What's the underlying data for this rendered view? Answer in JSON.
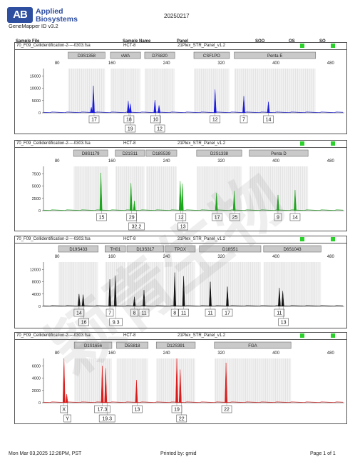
{
  "header": {
    "logo_mark": "AB",
    "logo_line1": "Applied",
    "logo_line2": "Biosystems",
    "app_version": "GeneMapper ID v3.2",
    "date": "20250217"
  },
  "table_header": {
    "sample_file": "Sample File",
    "sample_name": "Sample Name",
    "panel": "Panel",
    "sqo": "SQO",
    "os": "OS",
    "sq": "SQ"
  },
  "footer": {
    "timestamp": "Mon Mar 03,2025 12:26PM, PST",
    "printed_by": "Printed by: gmid",
    "page": "Page 1 of 1"
  },
  "watermark": "颖青生物",
  "chart_data": [
    {
      "type": "line",
      "color": "#1a1adf",
      "sample_file": "70_F09_Cellidentification-2----0303.fsa",
      "sample_name": "HCT-8",
      "panel": "21Plex_STR_Panel_v1.2",
      "x_ticks": [
        80,
        160,
        240,
        320,
        400,
        480
      ],
      "y_ticks": [
        0,
        5000,
        10000,
        15000
      ],
      "markers": [
        {
          "name": "D3S1358",
          "start": 96,
          "end": 150
        },
        {
          "name": "vWA",
          "start": 158,
          "end": 202
        },
        {
          "name": "D7S820",
          "start": 208,
          "end": 252
        },
        {
          "name": "CSF1PO",
          "start": 280,
          "end": 332
        },
        {
          "name": "Penta E",
          "start": 339,
          "end": 458
        }
      ],
      "peaks": [
        {
          "x": 133,
          "h": 11000
        },
        {
          "x": 130,
          "h": 2300
        },
        {
          "x": 184,
          "h": 4800
        },
        {
          "x": 187,
          "h": 3700
        },
        {
          "x": 223,
          "h": 5200
        },
        {
          "x": 229,
          "h": 3000
        },
        {
          "x": 311,
          "h": 9500
        },
        {
          "x": 353,
          "h": 6800
        },
        {
          "x": 389,
          "h": 4500
        }
      ],
      "calls_row1": [
        {
          "x": 134,
          "label": "17"
        },
        {
          "x": 185,
          "label": "18"
        },
        {
          "x": 224,
          "label": "10"
        },
        {
          "x": 311,
          "label": "12"
        },
        {
          "x": 353,
          "label": "7"
        },
        {
          "x": 389,
          "label": "14"
        }
      ],
      "calls_row2": [
        {
          "x": 187,
          "label": "19"
        },
        {
          "x": 230,
          "label": "12"
        }
      ]
    },
    {
      "type": "line",
      "color": "#1aa61a",
      "sample_file": "70_F09_Cellidentification-2----0303.fsa",
      "sample_name": "HCT-8",
      "panel": "21Plex_STR_Panel_v1.2",
      "x_ticks": [
        80,
        160,
        240,
        320,
        400,
        480
      ],
      "y_ticks": [
        0,
        2500,
        5000,
        7500
      ],
      "markers": [
        {
          "name": "D8S1179",
          "start": 104,
          "end": 154
        },
        {
          "name": "D21S11",
          "start": 165,
          "end": 208
        },
        {
          "name": "D18S539",
          "start": 210,
          "end": 255
        },
        {
          "name": "D2S1338",
          "start": 284,
          "end": 350
        },
        {
          "name": "Penta D",
          "start": 361,
          "end": 447
        }
      ],
      "peaks": [
        {
          "x": 144,
          "h": 7700
        },
        {
          "x": 188,
          "h": 5600
        },
        {
          "x": 193,
          "h": 2000
        },
        {
          "x": 260,
          "h": 6000
        },
        {
          "x": 263,
          "h": 5500
        },
        {
          "x": 313,
          "h": 3600
        },
        {
          "x": 339,
          "h": 4000
        },
        {
          "x": 403,
          "h": 3200
        },
        {
          "x": 428,
          "h": 4200
        }
      ],
      "calls_row1": [
        {
          "x": 145,
          "label": "15"
        },
        {
          "x": 189,
          "label": "29"
        },
        {
          "x": 261,
          "label": "12"
        },
        {
          "x": 314,
          "label": "17"
        },
        {
          "x": 340,
          "label": "25"
        },
        {
          "x": 403,
          "label": "9"
        },
        {
          "x": 428,
          "label": "14"
        }
      ],
      "calls_row2": [
        {
          "x": 196,
          "label": "32.2"
        },
        {
          "x": 264,
          "label": "13"
        }
      ]
    },
    {
      "type": "line",
      "color": "#111111",
      "sample_file": "70_F09_Cellidentification-2----0303.fsa",
      "sample_name": "HCT-8",
      "panel": "21Plex_STR_Panel_v1.2",
      "x_ticks": [
        80,
        160,
        240,
        320,
        400,
        480
      ],
      "y_ticks": [
        0,
        4000,
        8000,
        12000
      ],
      "markers": [
        {
          "name": "D19S433",
          "start": 82,
          "end": 140
        },
        {
          "name": "TH01",
          "start": 150,
          "end": 180
        },
        {
          "name": "D13S317",
          "start": 182,
          "end": 236
        },
        {
          "name": "TPOX",
          "start": 238,
          "end": 282
        },
        {
          "name": "D18S51",
          "start": 288,
          "end": 378
        },
        {
          "name": "D6S1043",
          "start": 382,
          "end": 466
        }
      ],
      "peaks": [
        {
          "x": 112,
          "h": 4000
        },
        {
          "x": 118,
          "h": 3800
        },
        {
          "x": 157,
          "h": 8800
        },
        {
          "x": 165,
          "h": 10000
        },
        {
          "x": 193,
          "h": 3100
        },
        {
          "x": 207,
          "h": 5300
        },
        {
          "x": 252,
          "h": 11000
        },
        {
          "x": 265,
          "h": 9800
        },
        {
          "x": 304,
          "h": 8000
        },
        {
          "x": 329,
          "h": 6400
        },
        {
          "x": 405,
          "h": 6000
        },
        {
          "x": 410,
          "h": 5000
        }
      ],
      "calls_row1": [
        {
          "x": 112,
          "label": "14"
        },
        {
          "x": 157,
          "label": "7"
        },
        {
          "x": 193,
          "label": "8"
        },
        {
          "x": 207,
          "label": "11"
        },
        {
          "x": 252,
          "label": "8"
        },
        {
          "x": 265,
          "label": "11"
        },
        {
          "x": 304,
          "label": "11"
        },
        {
          "x": 329,
          "label": "17"
        },
        {
          "x": 405,
          "label": "11"
        }
      ],
      "calls_row2": [
        {
          "x": 119,
          "label": "16"
        },
        {
          "x": 166,
          "label": "9.3"
        },
        {
          "x": 411,
          "label": "13"
        }
      ]
    },
    {
      "type": "line",
      "color": "#dd1a1a",
      "sample_file": "70_F09_Cellidentification-2----0303.fsa",
      "sample_name": "HCT-8",
      "panel": "21Plex_STR_Panel_v1.2",
      "x_ticks": [
        80,
        160,
        240,
        320,
        400,
        480
      ],
      "y_ticks": [
        0,
        2000,
        4000,
        6000
      ],
      "markers": [
        {
          "name": "D1S1656",
          "start": 105,
          "end": 160
        },
        {
          "name": "D5S818",
          "start": 167,
          "end": 213
        },
        {
          "name": "D12S391",
          "start": 225,
          "end": 282
        },
        {
          "name": "FGA",
          "start": 310,
          "end": 422
        }
      ],
      "peaks": [
        {
          "x": 90,
          "h": 7200
        },
        {
          "x": 94,
          "h": 1400
        },
        {
          "x": 146,
          "h": 6000
        },
        {
          "x": 151,
          "h": 5600
        },
        {
          "x": 196,
          "h": 3700
        },
        {
          "x": 255,
          "h": 7200
        },
        {
          "x": 260,
          "h": 5400
        },
        {
          "x": 327,
          "h": 6500
        }
      ],
      "calls_row1": [
        {
          "x": 90,
          "label": "X"
        },
        {
          "x": 146,
          "label": "17.3"
        },
        {
          "x": 197,
          "label": "13"
        },
        {
          "x": 255,
          "label": "19"
        },
        {
          "x": 328,
          "label": "22"
        }
      ],
      "calls_row2": [
        {
          "x": 95,
          "label": "Y"
        },
        {
          "x": 153,
          "label": "19.3"
        },
        {
          "x": 262,
          "label": "22"
        }
      ]
    }
  ]
}
